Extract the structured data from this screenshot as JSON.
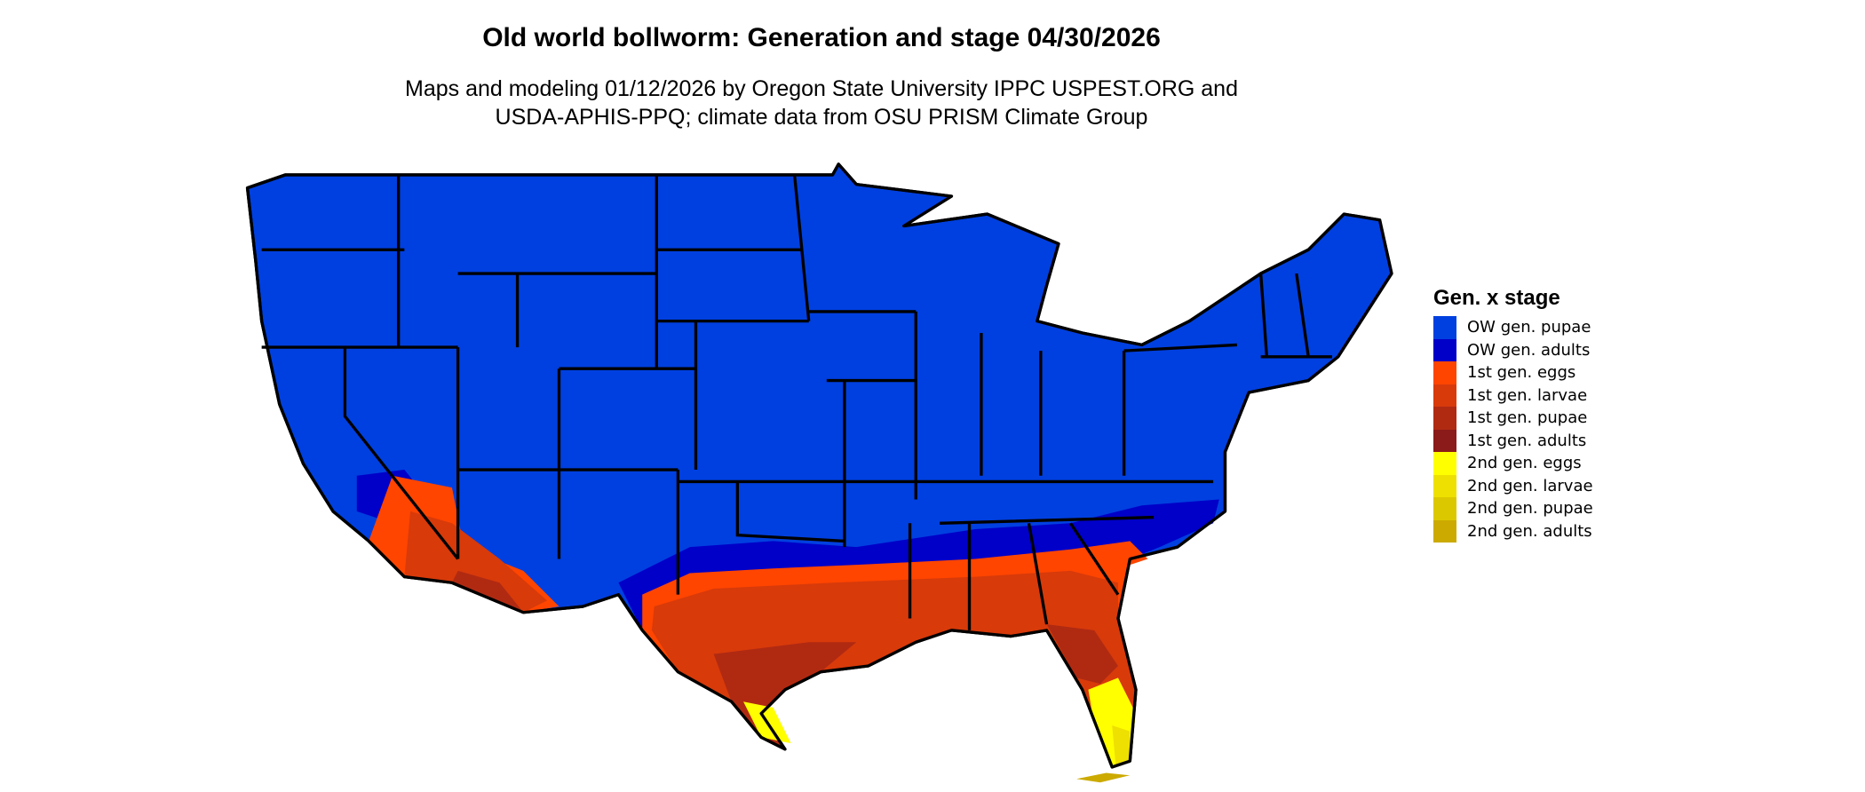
{
  "title": "Old world bollworm: Generation and stage 04/30/2026",
  "subtitle_line1": "Maps and modeling 01/12/2026 by Oregon State University IPPC USPEST.ORG and",
  "subtitle_line2": "USDA-APHIS-PPQ; climate data from OSU PRISM Climate Group",
  "legend": {
    "title": "Gen. x stage",
    "items": [
      {
        "label": "OW gen. pupae",
        "color": "#0040e0"
      },
      {
        "label": "OW gen. adults",
        "color": "#0000c8"
      },
      {
        "label": "1st gen. eggs",
        "color": "#ff4500"
      },
      {
        "label": "1st gen. larvae",
        "color": "#d83a0a"
      },
      {
        "label": "1st gen. pupae",
        "color": "#b02a12"
      },
      {
        "label": "1st gen. adults",
        "color": "#8b1a1a"
      },
      {
        "label": "2nd gen. eggs",
        "color": "#ffff00"
      },
      {
        "label": "2nd gen. larvae",
        "color": "#eee000"
      },
      {
        "label": "2nd gen. pupae",
        "color": "#dcc800"
      },
      {
        "label": "2nd gen. adults",
        "color": "#ccaa00"
      }
    ]
  }
}
